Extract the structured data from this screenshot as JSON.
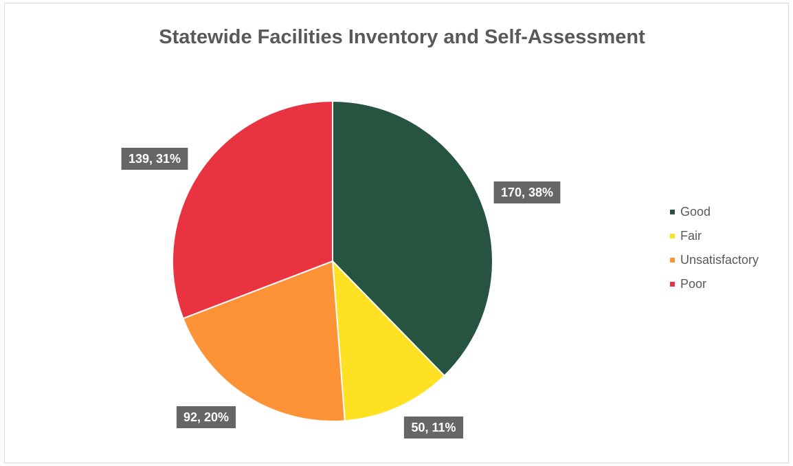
{
  "chart_data": {
    "type": "pie",
    "title": "Statewide Facilities Inventory and Self-Assessment",
    "categories": [
      "Good",
      "Fair",
      "Unsatisfactory",
      "Poor"
    ],
    "values": [
      170,
      50,
      92,
      139
    ],
    "data_labels": [
      "170, 38%",
      "50, 11%",
      "92, 20%",
      "139, 31%"
    ],
    "colors": [
      "#275441",
      "#fde122",
      "#fd9336",
      "#ea3340"
    ],
    "legend": "right",
    "label_background": "#666666"
  }
}
